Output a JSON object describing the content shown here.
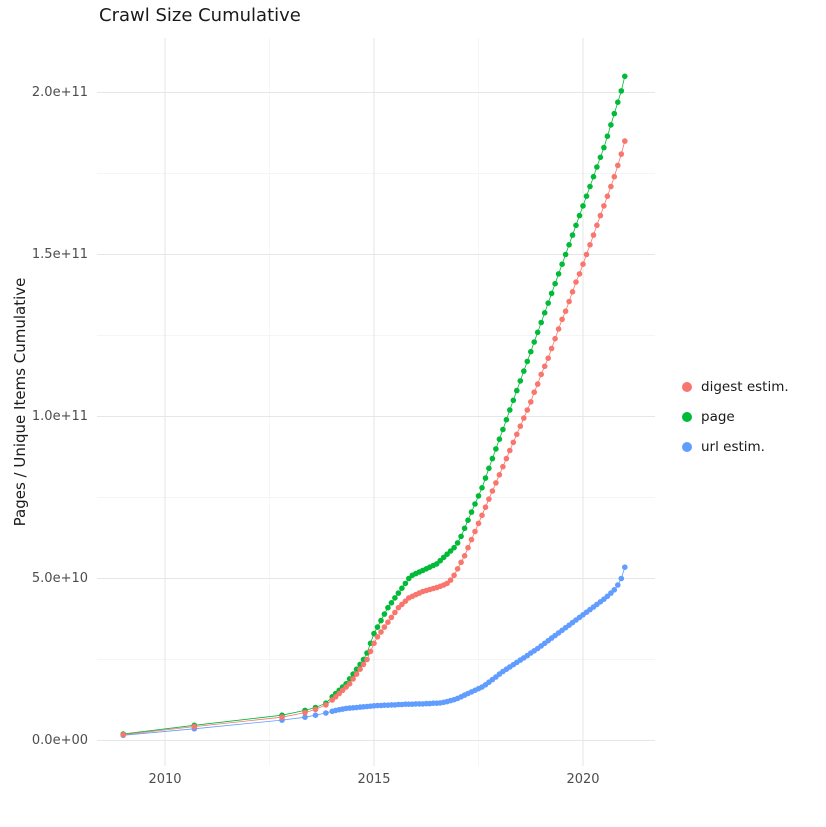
{
  "chart_data": {
    "type": "scatter",
    "title": "Crawl Size Cumulative",
    "xlabel": "",
    "ylabel": "Pages / Unique Items Cumulative",
    "grid": true,
    "legend_position": "right",
    "y_unit_scale": "values given in units of 1e9",
    "x_ticks": {
      "values": [
        2010,
        2015,
        2020
      ],
      "labels": [
        "2010",
        "2015",
        "2020"
      ]
    },
    "x_minor": [
      2012.5,
      2017.5
    ],
    "y_ticks": {
      "values_e9": [
        0,
        50,
        100,
        150,
        200
      ],
      "labels": [
        "0.0e+00",
        "5.0e+10",
        "1.0e+11",
        "1.5e+11",
        "2.0e+11"
      ]
    },
    "y_minor_e9": [
      25,
      75,
      125,
      175
    ],
    "xlim": [
      2008.4,
      2021.8
    ],
    "ylim_e9": [
      -8,
      217
    ],
    "x": [
      2009.0,
      2010.7,
      2012.8,
      2013.35,
      2013.6,
      2013.85,
      2014.0,
      2014.083,
      2014.167,
      2014.25,
      2014.333,
      2014.417,
      2014.5,
      2014.583,
      2014.667,
      2014.75,
      2014.833,
      2014.917,
      2015.0,
      2015.083,
      2015.167,
      2015.25,
      2015.333,
      2015.417,
      2015.5,
      2015.583,
      2015.667,
      2015.75,
      2015.833,
      2015.917,
      2016.0,
      2016.083,
      2016.167,
      2016.25,
      2016.333,
      2016.417,
      2016.5,
      2016.583,
      2016.667,
      2016.75,
      2016.833,
      2016.917,
      2017.0,
      2017.083,
      2017.167,
      2017.25,
      2017.333,
      2017.417,
      2017.5,
      2017.583,
      2017.667,
      2017.75,
      2017.833,
      2017.917,
      2018.0,
      2018.083,
      2018.167,
      2018.25,
      2018.333,
      2018.417,
      2018.5,
      2018.583,
      2018.667,
      2018.75,
      2018.833,
      2018.917,
      2019.0,
      2019.083,
      2019.167,
      2019.25,
      2019.333,
      2019.417,
      2019.5,
      2019.583,
      2019.667,
      2019.75,
      2019.833,
      2019.917,
      2020.0,
      2020.083,
      2020.167,
      2020.25,
      2020.333,
      2020.417,
      2020.5,
      2020.583,
      2020.667,
      2020.75,
      2020.833,
      2020.917,
      2021.0
    ],
    "series": [
      {
        "name": "digest estim.",
        "color": "#F8766D",
        "values_e9": [
          1.8,
          4.3,
          7.2,
          8.6,
          9.6,
          11.0,
          12.5,
          13.5,
          14.5,
          15.5,
          16.5,
          17.5,
          19,
          20.5,
          22,
          23.5,
          25,
          27.5,
          30,
          32,
          33.5,
          35,
          36.5,
          38,
          39.5,
          41,
          42,
          43,
          44,
          44.5,
          45,
          45.5,
          46,
          46.3,
          46.6,
          46.9,
          47.2,
          47.6,
          48,
          48.5,
          49.5,
          51,
          53,
          55,
          57,
          59.5,
          62,
          64.5,
          67,
          69.5,
          72,
          74.5,
          77,
          79.5,
          82,
          84.5,
          87,
          89.5,
          92,
          94.5,
          97,
          99.5,
          102,
          104.5,
          107.5,
          110,
          113,
          115.5,
          118,
          121,
          124,
          127,
          130,
          132.5,
          135.5,
          138.5,
          141.5,
          144,
          147,
          150,
          153,
          156,
          159,
          162,
          165,
          168,
          171,
          174,
          177.5,
          181,
          185
        ]
      },
      {
        "name": "page",
        "color": "#00BA38",
        "values_e9": [
          2.0,
          4.7,
          7.8,
          9.3,
          10.2,
          11.5,
          13.5,
          14.5,
          15.5,
          16.5,
          17.5,
          19,
          20.5,
          22,
          23.5,
          25,
          27,
          30,
          33,
          35,
          37,
          39,
          41,
          42.5,
          44,
          45.5,
          47,
          48.5,
          50,
          51,
          51.5,
          52,
          52.5,
          53,
          53.5,
          54,
          54.5,
          55.5,
          56.5,
          57.5,
          58.5,
          59.5,
          61,
          63,
          65.5,
          68,
          70.5,
          73,
          75.5,
          78,
          81,
          84,
          87,
          90,
          93,
          96,
          99,
          102,
          105,
          108,
          111,
          114,
          117,
          120,
          123,
          126,
          129,
          132,
          135,
          138,
          141,
          144,
          147,
          150,
          153,
          156,
          159,
          162,
          165,
          168,
          171,
          174,
          177,
          180,
          183,
          186.5,
          190,
          193.5,
          197,
          200.5,
          205
        ]
      },
      {
        "name": "url estim.",
        "color": "#619CFF",
        "values_e9": [
          1.6,
          3.6,
          6.3,
          7.2,
          7.8,
          8.5,
          9,
          9.3,
          9.5,
          9.7,
          9.9,
          10,
          10.1,
          10.2,
          10.3,
          10.4,
          10.5,
          10.6,
          10.7,
          10.8,
          10.8,
          10.9,
          10.9,
          11,
          11,
          11.1,
          11.1,
          11.2,
          11.2,
          11.2,
          11.3,
          11.3,
          11.3,
          11.4,
          11.4,
          11.5,
          11.5,
          11.6,
          11.8,
          12,
          12.3,
          12.6,
          13,
          13.5,
          14,
          14.5,
          15,
          15.5,
          16,
          16.5,
          17.2,
          18,
          18.8,
          19.6,
          20.5,
          21.3,
          22,
          22.7,
          23.4,
          24.1,
          24.8,
          25.5,
          26.2,
          27,
          27.7,
          28.4,
          29.2,
          30,
          30.8,
          31.6,
          32.4,
          33.2,
          34,
          34.8,
          35.6,
          36.4,
          37.2,
          38,
          38.8,
          39.6,
          40.4,
          41.2,
          42,
          42.8,
          43.6,
          44.5,
          45.5,
          46.5,
          48,
          50,
          53.5
        ]
      }
    ],
    "colors": {
      "grid_major": "#e6e6e6",
      "grid_minor": "#f2f2f2",
      "axis_text": "#4d4d4d"
    }
  }
}
